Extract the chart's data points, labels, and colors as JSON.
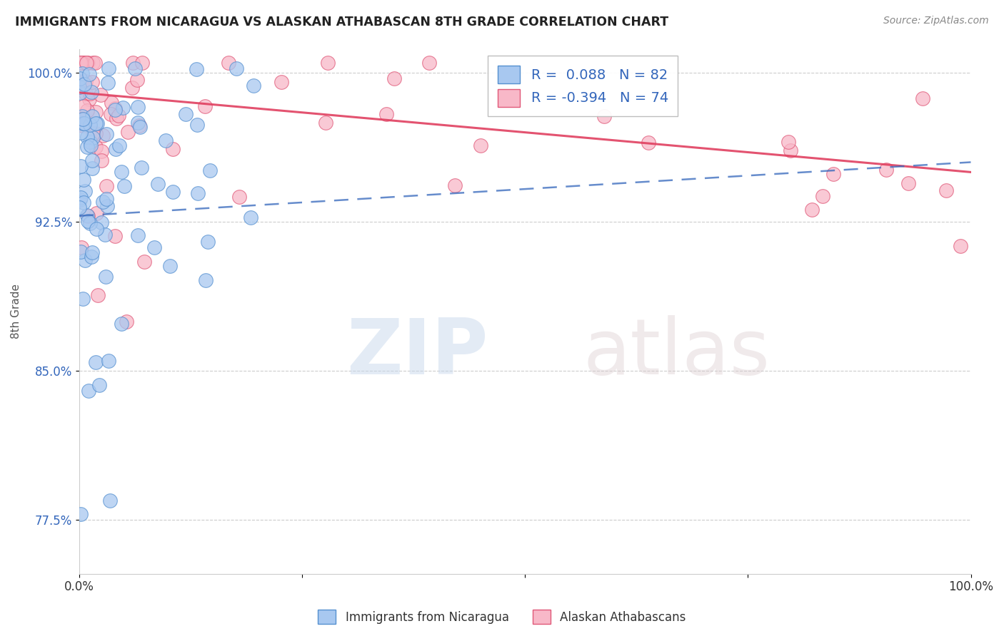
{
  "title": "IMMIGRANTS FROM NICARAGUA VS ALASKAN ATHABASCAN 8TH GRADE CORRELATION CHART",
  "source": "Source: ZipAtlas.com",
  "ylabel": "8th Grade",
  "xlim": [
    0.0,
    1.0
  ],
  "ylim": [
    0.748,
    1.012
  ],
  "xticks": [
    0.0,
    0.25,
    0.5,
    0.75,
    1.0
  ],
  "xticklabels": [
    "0.0%",
    "",
    "",
    "",
    "100.0%"
  ],
  "ytick_positions": [
    0.775,
    0.85,
    0.925,
    1.0
  ],
  "ytick_labels": [
    "77.5%",
    "85.0%",
    "92.5%",
    "100.0%"
  ],
  "legend_R_blue": " 0.088",
  "legend_N_blue": "82",
  "legend_R_pink": "-0.394",
  "legend_N_pink": "74",
  "blue_face_color": "#a8c8f0",
  "blue_edge_color": "#5590d0",
  "pink_face_color": "#f8b8c8",
  "pink_edge_color": "#e05878",
  "blue_line_color": "#3366bb",
  "pink_line_color": "#e04060",
  "watermark_zip": "ZIP",
  "watermark_atlas": "atlas",
  "background_color": "#ffffff",
  "grid_color": "#cccccc",
  "title_color": "#222222",
  "source_color": "#888888",
  "ylabel_color": "#555555",
  "tick_color_y": "#3366bb",
  "tick_color_x": "#333333"
}
